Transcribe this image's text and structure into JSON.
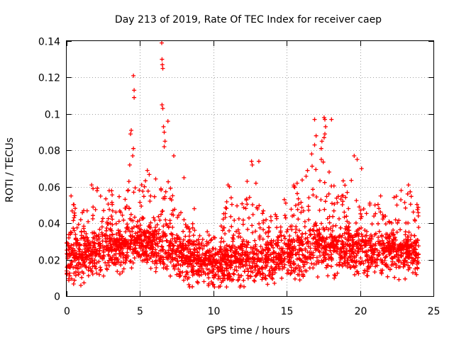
{
  "chart_data": {
    "type": "scatter",
    "title": "Day 213 of 2019, Rate Of TEC Index for receiver caep",
    "xlabel": "GPS time / hours",
    "ylabel": "ROTI / TECUs",
    "xlim": [
      0,
      25
    ],
    "ylim": [
      0,
      0.14
    ],
    "xticks": [
      0,
      5,
      10,
      15,
      20,
      25
    ],
    "xtick_labels": [
      "0",
      "5",
      "10",
      "15",
      "20",
      "25"
    ],
    "yticks": [
      0,
      0.02,
      0.04,
      0.06,
      0.08,
      0.1,
      0.12,
      0.14
    ],
    "ytick_labels": [
      "0",
      "0.02",
      "0.04",
      "0.06",
      "0.08",
      "0.1",
      "0.12",
      "0.14"
    ],
    "grid": true,
    "marker": "+",
    "color": "#ff0000",
    "series": [
      {
        "name": "ROTI",
        "envelope_hours": [
          0,
          0.5,
          1,
          1.5,
          2,
          2.5,
          3,
          3.5,
          4,
          4.5,
          5,
          5.5,
          6,
          6.5,
          7,
          7.5,
          8,
          8.5,
          9,
          9.5,
          10,
          10.5,
          11,
          11.5,
          12,
          12.5,
          13,
          13.5,
          14,
          14.5,
          15,
          15.5,
          16,
          16.5,
          17,
          17.5,
          18,
          18.5,
          19,
          19.5,
          20,
          20.5,
          21,
          21.5,
          22,
          22.5,
          23,
          23.5,
          24
        ],
        "typical_level": [
          0.02,
          0.021,
          0.021,
          0.022,
          0.023,
          0.024,
          0.025,
          0.026,
          0.027,
          0.028,
          0.029,
          0.029,
          0.028,
          0.027,
          0.025,
          0.023,
          0.021,
          0.02,
          0.019,
          0.018,
          0.017,
          0.018,
          0.018,
          0.019,
          0.019,
          0.019,
          0.019,
          0.02,
          0.02,
          0.021,
          0.022,
          0.023,
          0.024,
          0.025,
          0.026,
          0.026,
          0.026,
          0.026,
          0.026,
          0.025,
          0.025,
          0.024,
          0.024,
          0.024,
          0.024,
          0.024,
          0.024,
          0.023,
          0.022
        ],
        "upper_envelope": [
          0.04,
          0.05,
          0.045,
          0.048,
          0.06,
          0.05,
          0.058,
          0.055,
          0.062,
          0.065,
          0.06,
          0.068,
          0.062,
          0.07,
          0.06,
          0.05,
          0.042,
          0.04,
          0.036,
          0.035,
          0.036,
          0.045,
          0.058,
          0.052,
          0.06,
          0.058,
          0.05,
          0.045,
          0.045,
          0.048,
          0.055,
          0.06,
          0.065,
          0.068,
          0.072,
          0.075,
          0.065,
          0.062,
          0.065,
          0.062,
          0.06,
          0.05,
          0.05,
          0.05,
          0.052,
          0.055,
          0.06,
          0.055,
          0.05
        ],
        "peaks": [
          {
            "x": 4.35,
            "y": 0.089
          },
          {
            "x": 4.4,
            "y": 0.091
          },
          {
            "x": 4.55,
            "y": 0.121
          },
          {
            "x": 4.6,
            "y": 0.113
          },
          {
            "x": 4.6,
            "y": 0.109
          },
          {
            "x": 4.55,
            "y": 0.081
          },
          {
            "x": 4.5,
            "y": 0.077
          },
          {
            "x": 4.3,
            "y": 0.072
          },
          {
            "x": 6.48,
            "y": 0.139
          },
          {
            "x": 6.5,
            "y": 0.13
          },
          {
            "x": 6.52,
            "y": 0.127
          },
          {
            "x": 6.55,
            "y": 0.125
          },
          {
            "x": 6.5,
            "y": 0.105
          },
          {
            "x": 6.55,
            "y": 0.103
          },
          {
            "x": 6.6,
            "y": 0.093
          },
          {
            "x": 6.65,
            "y": 0.09
          },
          {
            "x": 6.7,
            "y": 0.085
          },
          {
            "x": 6.65,
            "y": 0.082
          },
          {
            "x": 6.9,
            "y": 0.096
          },
          {
            "x": 7.3,
            "y": 0.077
          },
          {
            "x": 13.1,
            "y": 0.074
          },
          {
            "x": 12.6,
            "y": 0.074
          },
          {
            "x": 12.65,
            "y": 0.072
          },
          {
            "x": 16.9,
            "y": 0.097
          },
          {
            "x": 17.55,
            "y": 0.098
          },
          {
            "x": 17.6,
            "y": 0.097
          },
          {
            "x": 17.65,
            "y": 0.093
          },
          {
            "x": 17.6,
            "y": 0.089
          },
          {
            "x": 17.55,
            "y": 0.087
          },
          {
            "x": 17.4,
            "y": 0.085
          },
          {
            "x": 17.35,
            "y": 0.081
          },
          {
            "x": 18.05,
            "y": 0.097
          },
          {
            "x": 17.0,
            "y": 0.088
          },
          {
            "x": 16.9,
            "y": 0.083
          },
          {
            "x": 16.7,
            "y": 0.078
          },
          {
            "x": 19.6,
            "y": 0.077
          },
          {
            "x": 19.8,
            "y": 0.075
          },
          {
            "x": 20.1,
            "y": 0.07
          },
          {
            "x": 5.5,
            "y": 0.069
          },
          {
            "x": 8.0,
            "y": 0.065
          },
          {
            "x": 11.0,
            "y": 0.061
          },
          {
            "x": 11.1,
            "y": 0.06
          },
          {
            "x": 1.7,
            "y": 0.061
          },
          {
            "x": 1.8,
            "y": 0.059
          },
          {
            "x": 12.3,
            "y": 0.063
          },
          {
            "x": 12.9,
            "y": 0.062
          },
          {
            "x": 15.5,
            "y": 0.06
          },
          {
            "x": 23.3,
            "y": 0.061
          },
          {
            "x": 0.3,
            "y": 0.055
          },
          {
            "x": 8.7,
            "y": 0.048
          },
          {
            "x": 21.4,
            "y": 0.055
          },
          {
            "x": 22.8,
            "y": 0.058
          }
        ]
      }
    ]
  }
}
